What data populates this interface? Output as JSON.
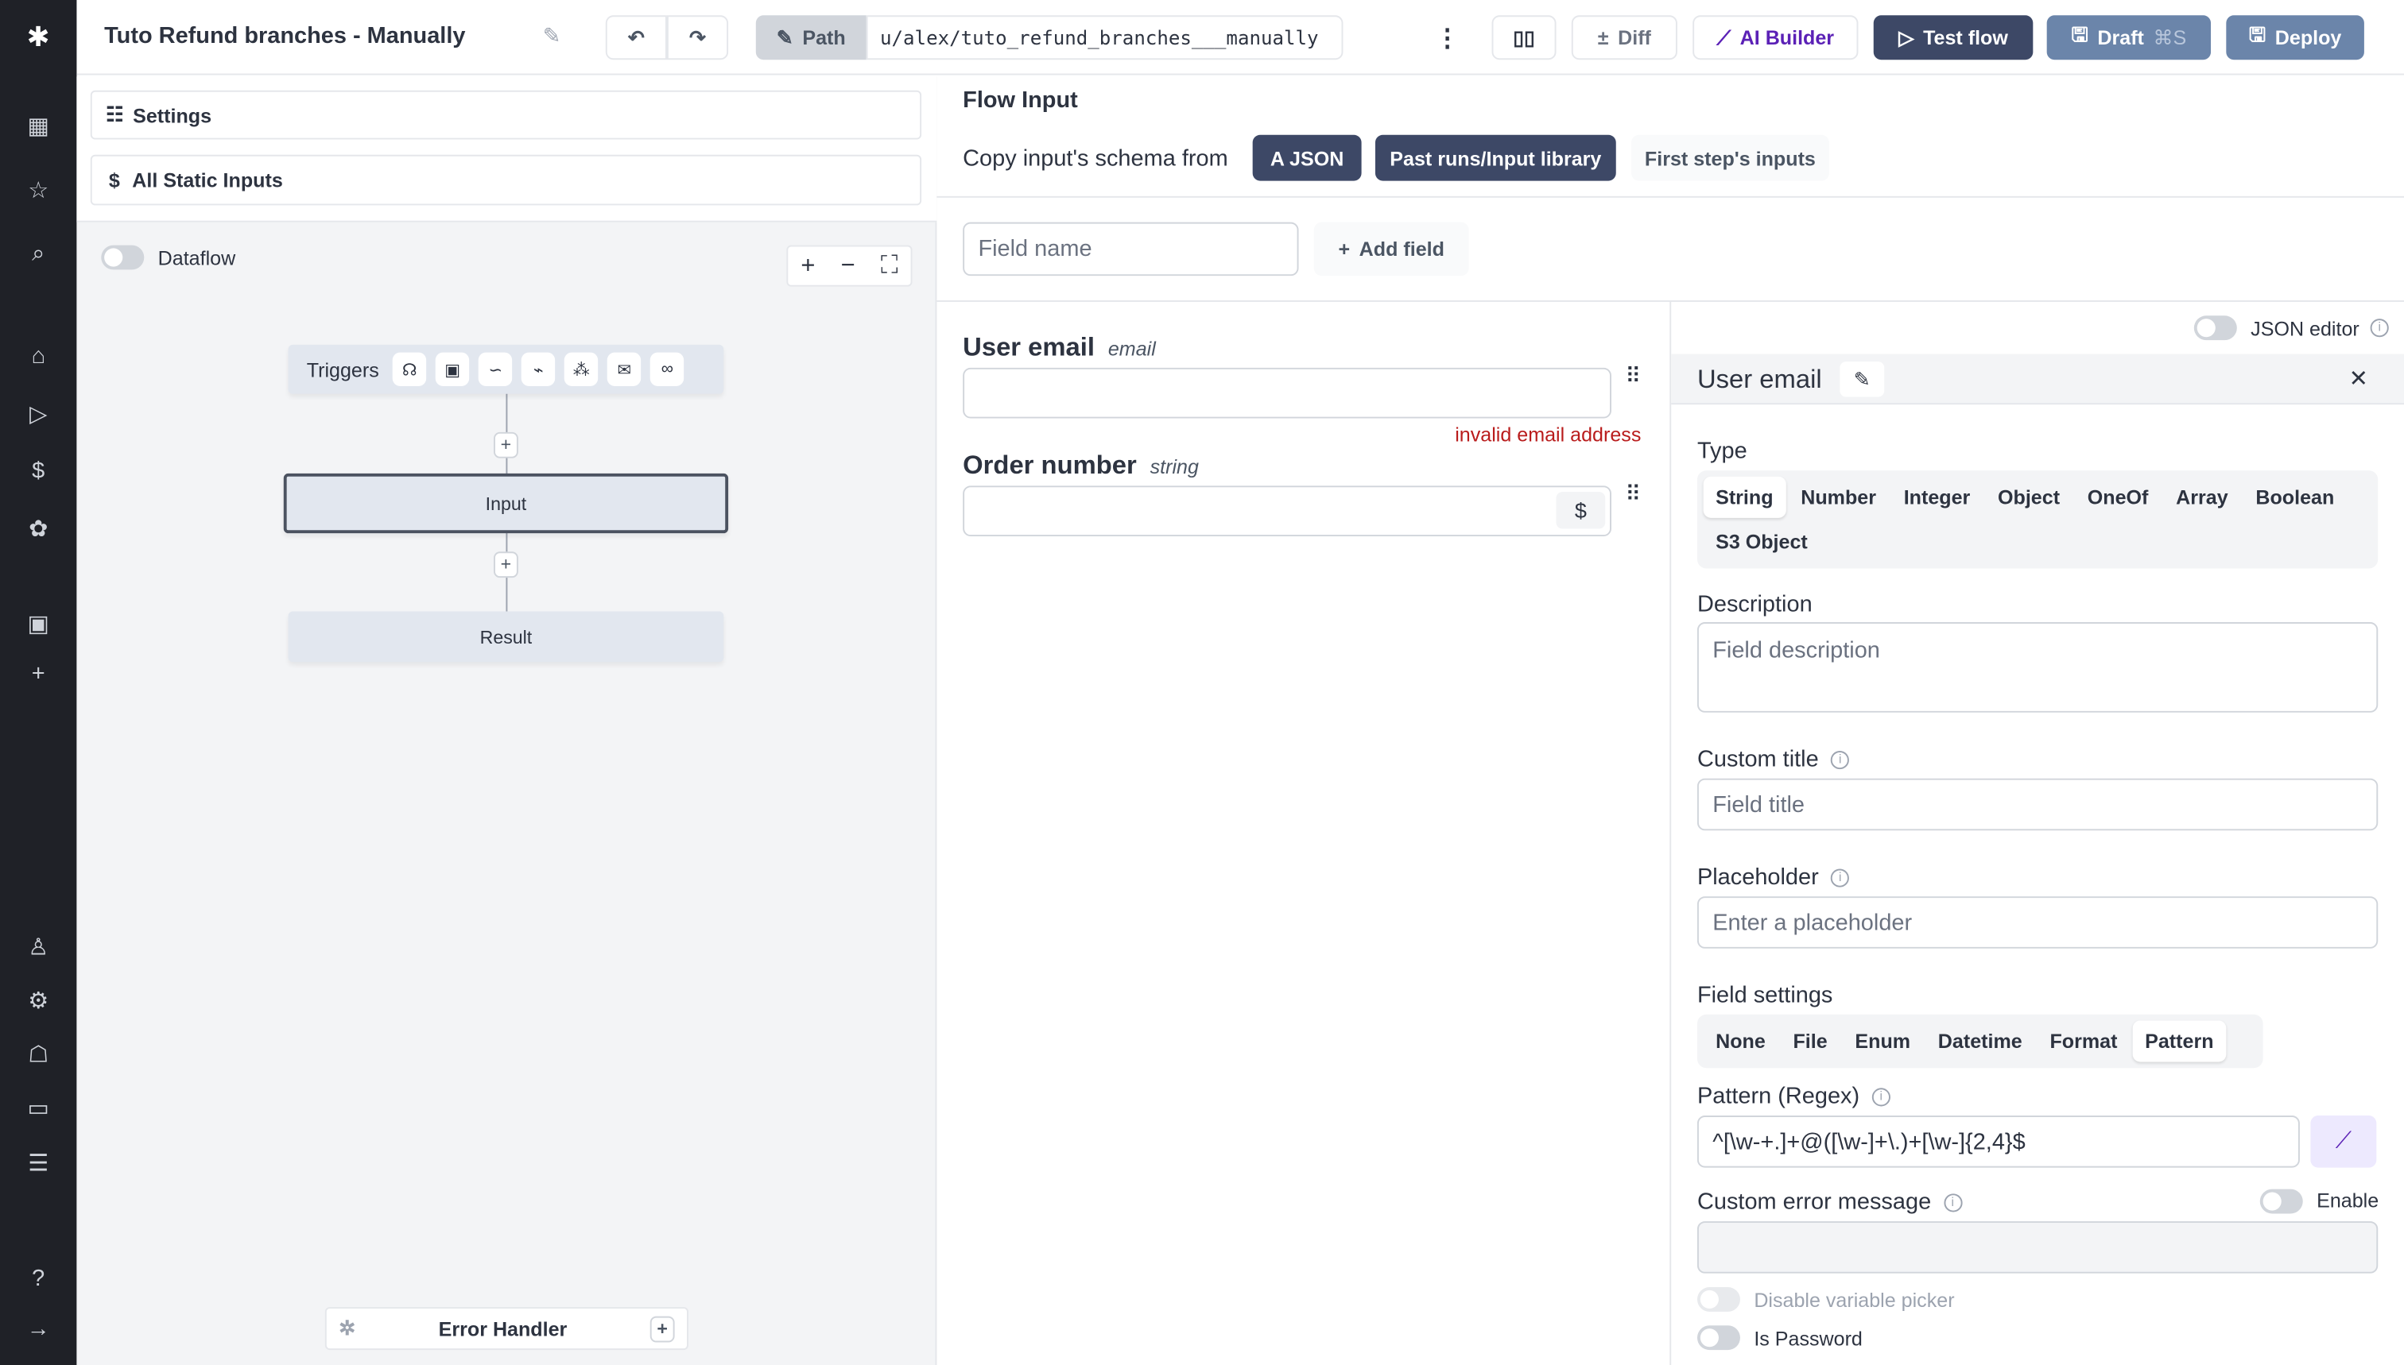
{
  "app": {
    "title": "Tuto Refund branches - Manually",
    "path_label": "Path",
    "path_value": "u/alex/tuto_refund_branches___manually"
  },
  "toolbar": {
    "diff": "Diff",
    "ai_builder": "AI Builder",
    "test_flow": "Test flow",
    "draft": "Draft",
    "draft_shortcut": "⌘S",
    "deploy": "Deploy"
  },
  "colors": {
    "nav_bg": "#1f2127",
    "test_flow": "#3d4866",
    "draft": "#6b85aa",
    "ai": "#5b21b6",
    "error": "#b91c1c"
  },
  "left": {
    "settings": "Settings",
    "static_inputs": "All Static Inputs",
    "dataflow": "Dataflow",
    "triggers": "Triggers",
    "input_node": "Input",
    "result_node": "Result",
    "error_handler": "Error Handler"
  },
  "flow_input": {
    "title": "Flow Input",
    "copy_label": "Copy input's schema from",
    "a_json": "A JSON",
    "past_runs": "Past runs/Input library",
    "first_step": "First step's inputs",
    "field_name_placeholder": "Field name",
    "add_field": "Add field"
  },
  "fields": [
    {
      "name": "User email",
      "type": "email",
      "error": "invalid email address"
    },
    {
      "name": "Order number",
      "type": "string"
    }
  ],
  "editor": {
    "json_editor": "JSON editor",
    "title": "User email",
    "type_label": "Type",
    "types": [
      "String",
      "Number",
      "Integer",
      "Object",
      "OneOf",
      "Array",
      "Boolean",
      "S3 Object"
    ],
    "selected_type": "String",
    "description_label": "Description",
    "description_placeholder": "Field description",
    "custom_title_label": "Custom title",
    "custom_title_placeholder": "Field title",
    "placeholder_label": "Placeholder",
    "placeholder_placeholder": "Enter a placeholder",
    "field_settings_label": "Field settings",
    "settings": [
      "None",
      "File",
      "Enum",
      "Datetime",
      "Format",
      "Pattern"
    ],
    "selected_setting": "Pattern",
    "pattern_label": "Pattern (Regex)",
    "pattern_value": "^[\\w-+.]+@([\\w-]+\\.)+[\\w-]{2,4}$",
    "custom_error_label": "Custom error message",
    "enable": "Enable",
    "disable_picker": "Disable variable picker",
    "is_password": "Is Password"
  }
}
